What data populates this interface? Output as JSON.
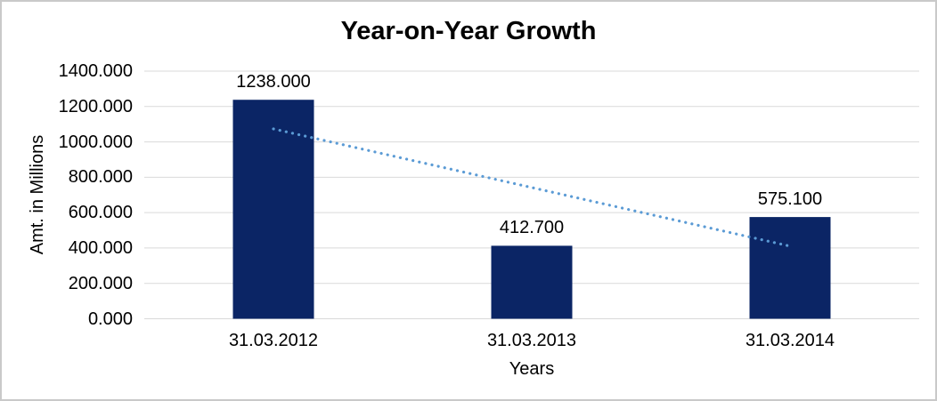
{
  "frame": {
    "background": "#ffffff",
    "border_color": "#c9c9c9"
  },
  "chart_data": {
    "type": "bar",
    "title": "Year-on-Year Growth",
    "xlabel": "Years",
    "ylabel": "Amt. in Millions",
    "categories": [
      "31.03.2012",
      "31.03.2013",
      "31.03.2014"
    ],
    "values": [
      1238.0,
      412.7,
      575.1
    ],
    "data_labels": [
      "1238.000",
      "412.700",
      "575.100"
    ],
    "y_ticks": [
      "0.000",
      "200.000",
      "400.000",
      "600.000",
      "800.000",
      "1000.000",
      "1200.000",
      "1400.000"
    ],
    "ylim": [
      0,
      1400
    ],
    "y_tick_step": 200,
    "grid": true,
    "legend_position": "none",
    "bar_color": "#0b2565",
    "gridline_color": "#d9d9d9",
    "text_color": "#000000",
    "trendline": {
      "type": "linear",
      "style": "dotted",
      "color": "#5b9bd5",
      "start_value": 1073.4,
      "end_value": 410.5
    }
  }
}
